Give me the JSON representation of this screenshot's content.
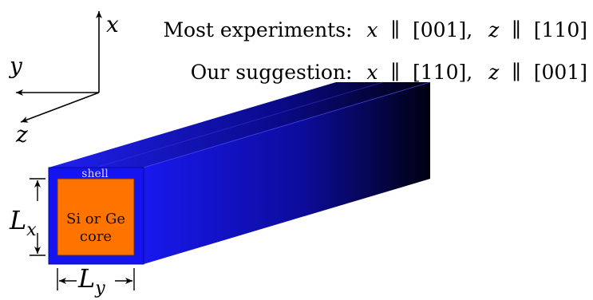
{
  "axes": {
    "x_label": "x",
    "y_label": "y",
    "z_label": "z"
  },
  "orientation": {
    "line1": {
      "prefix": "Most experiments:",
      "a": "x",
      "dir_a": "[001],",
      "b": "z",
      "dir_b": "[110]"
    },
    "line2": {
      "prefix": "Our suggestion:",
      "a": "x",
      "dir_a": "[110],",
      "b": "z",
      "dir_b": "[001]"
    },
    "parallel_symbol": "∥"
  },
  "wire": {
    "shell_label": "shell",
    "core_label_line1": "Si or Ge",
    "core_label_line2": "core",
    "colors": {
      "shell": "#1414f0",
      "shell_dark": "#000018",
      "core": "#ff7400"
    }
  },
  "dimensions": {
    "Lx_base": "L",
    "Lx_sub": "x",
    "Ly_base": "L",
    "Ly_sub": "y"
  }
}
